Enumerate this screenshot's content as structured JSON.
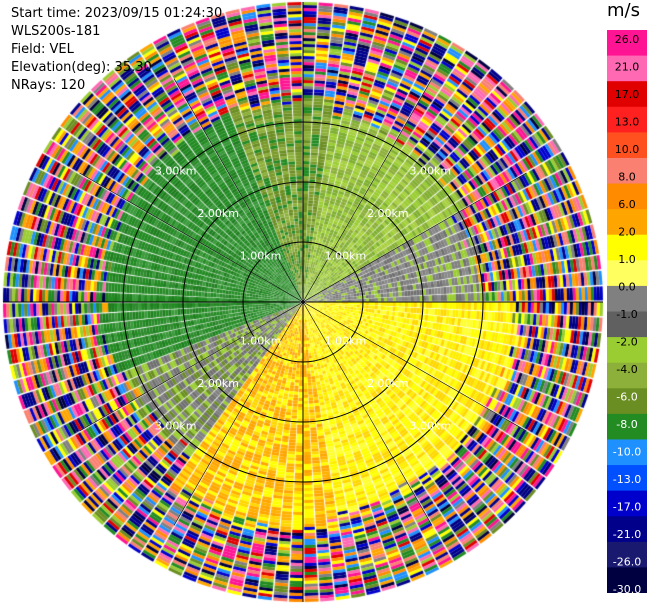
{
  "header": {
    "start_time": "Start time: 2023/09/15 01:24:30",
    "site": "WLS200s-181",
    "field": "Field: VEL",
    "elevation": "Elevation(deg): 35.30",
    "nrays": "NRays: 120"
  },
  "chart_data": {
    "type": "ppi",
    "field": "VEL",
    "n_rays": 120,
    "range_rings_km": [
      1.0,
      2.0,
      3.0
    ],
    "ring_labels": [
      "1.00km",
      "2.00km",
      "3.00km"
    ],
    "max_range_km": 5.0,
    "crosshair": true,
    "velocity_regions": [
      {
        "from_deg": 250,
        "to_deg": 340,
        "to_km": 3.4,
        "class": "green"
      },
      {
        "from_deg": 340,
        "to_deg": 370,
        "to_km": 3.4,
        "class": "olive"
      },
      {
        "from_deg": 10,
        "to_deg": 60,
        "to_km": 3.2,
        "class": "lightgreen"
      },
      {
        "from_deg": 60,
        "to_deg": 90,
        "to_km": 3.0,
        "class": "gray"
      },
      {
        "from_deg": 90,
        "to_deg": 170,
        "to_km": 3.6,
        "class": "yellow"
      },
      {
        "from_deg": 110,
        "to_deg": 160,
        "to_km": 3.0,
        "class": "orange"
      },
      {
        "from_deg": 170,
        "to_deg": 215,
        "to_km": 3.8,
        "class": "orange_yellow"
      },
      {
        "from_deg": 215,
        "to_deg": 250,
        "to_km": 3.2,
        "class": "gray_olive"
      }
    ],
    "colorbar": {
      "unit": "m/s",
      "ticks": [
        "26.0",
        "21.0",
        "17.0",
        "13.0",
        "10.0",
        "8.0",
        "6.0",
        "2.0",
        "1.0",
        "0.0",
        "-1.0",
        "-2.0",
        "-4.0",
        "-6.0",
        "-8.0",
        "-10.0",
        "-13.0",
        "-17.0",
        "-21.0",
        "-26.0",
        "-30.0"
      ],
      "colors": [
        "#ff1493",
        "#ff69b4",
        "#e00000",
        "#ff2020",
        "#ff5020",
        "#fa8072",
        "#ff8c00",
        "#ffa500",
        "#ffff00",
        "#ffff60",
        "#808080",
        "#606060",
        "#9acd32",
        "#8db03a",
        "#6b8e23",
        "#228b22",
        "#1e90ff",
        "#0050ff",
        "#0000cd",
        "#00008b",
        "#191970",
        "#000040"
      ]
    }
  }
}
